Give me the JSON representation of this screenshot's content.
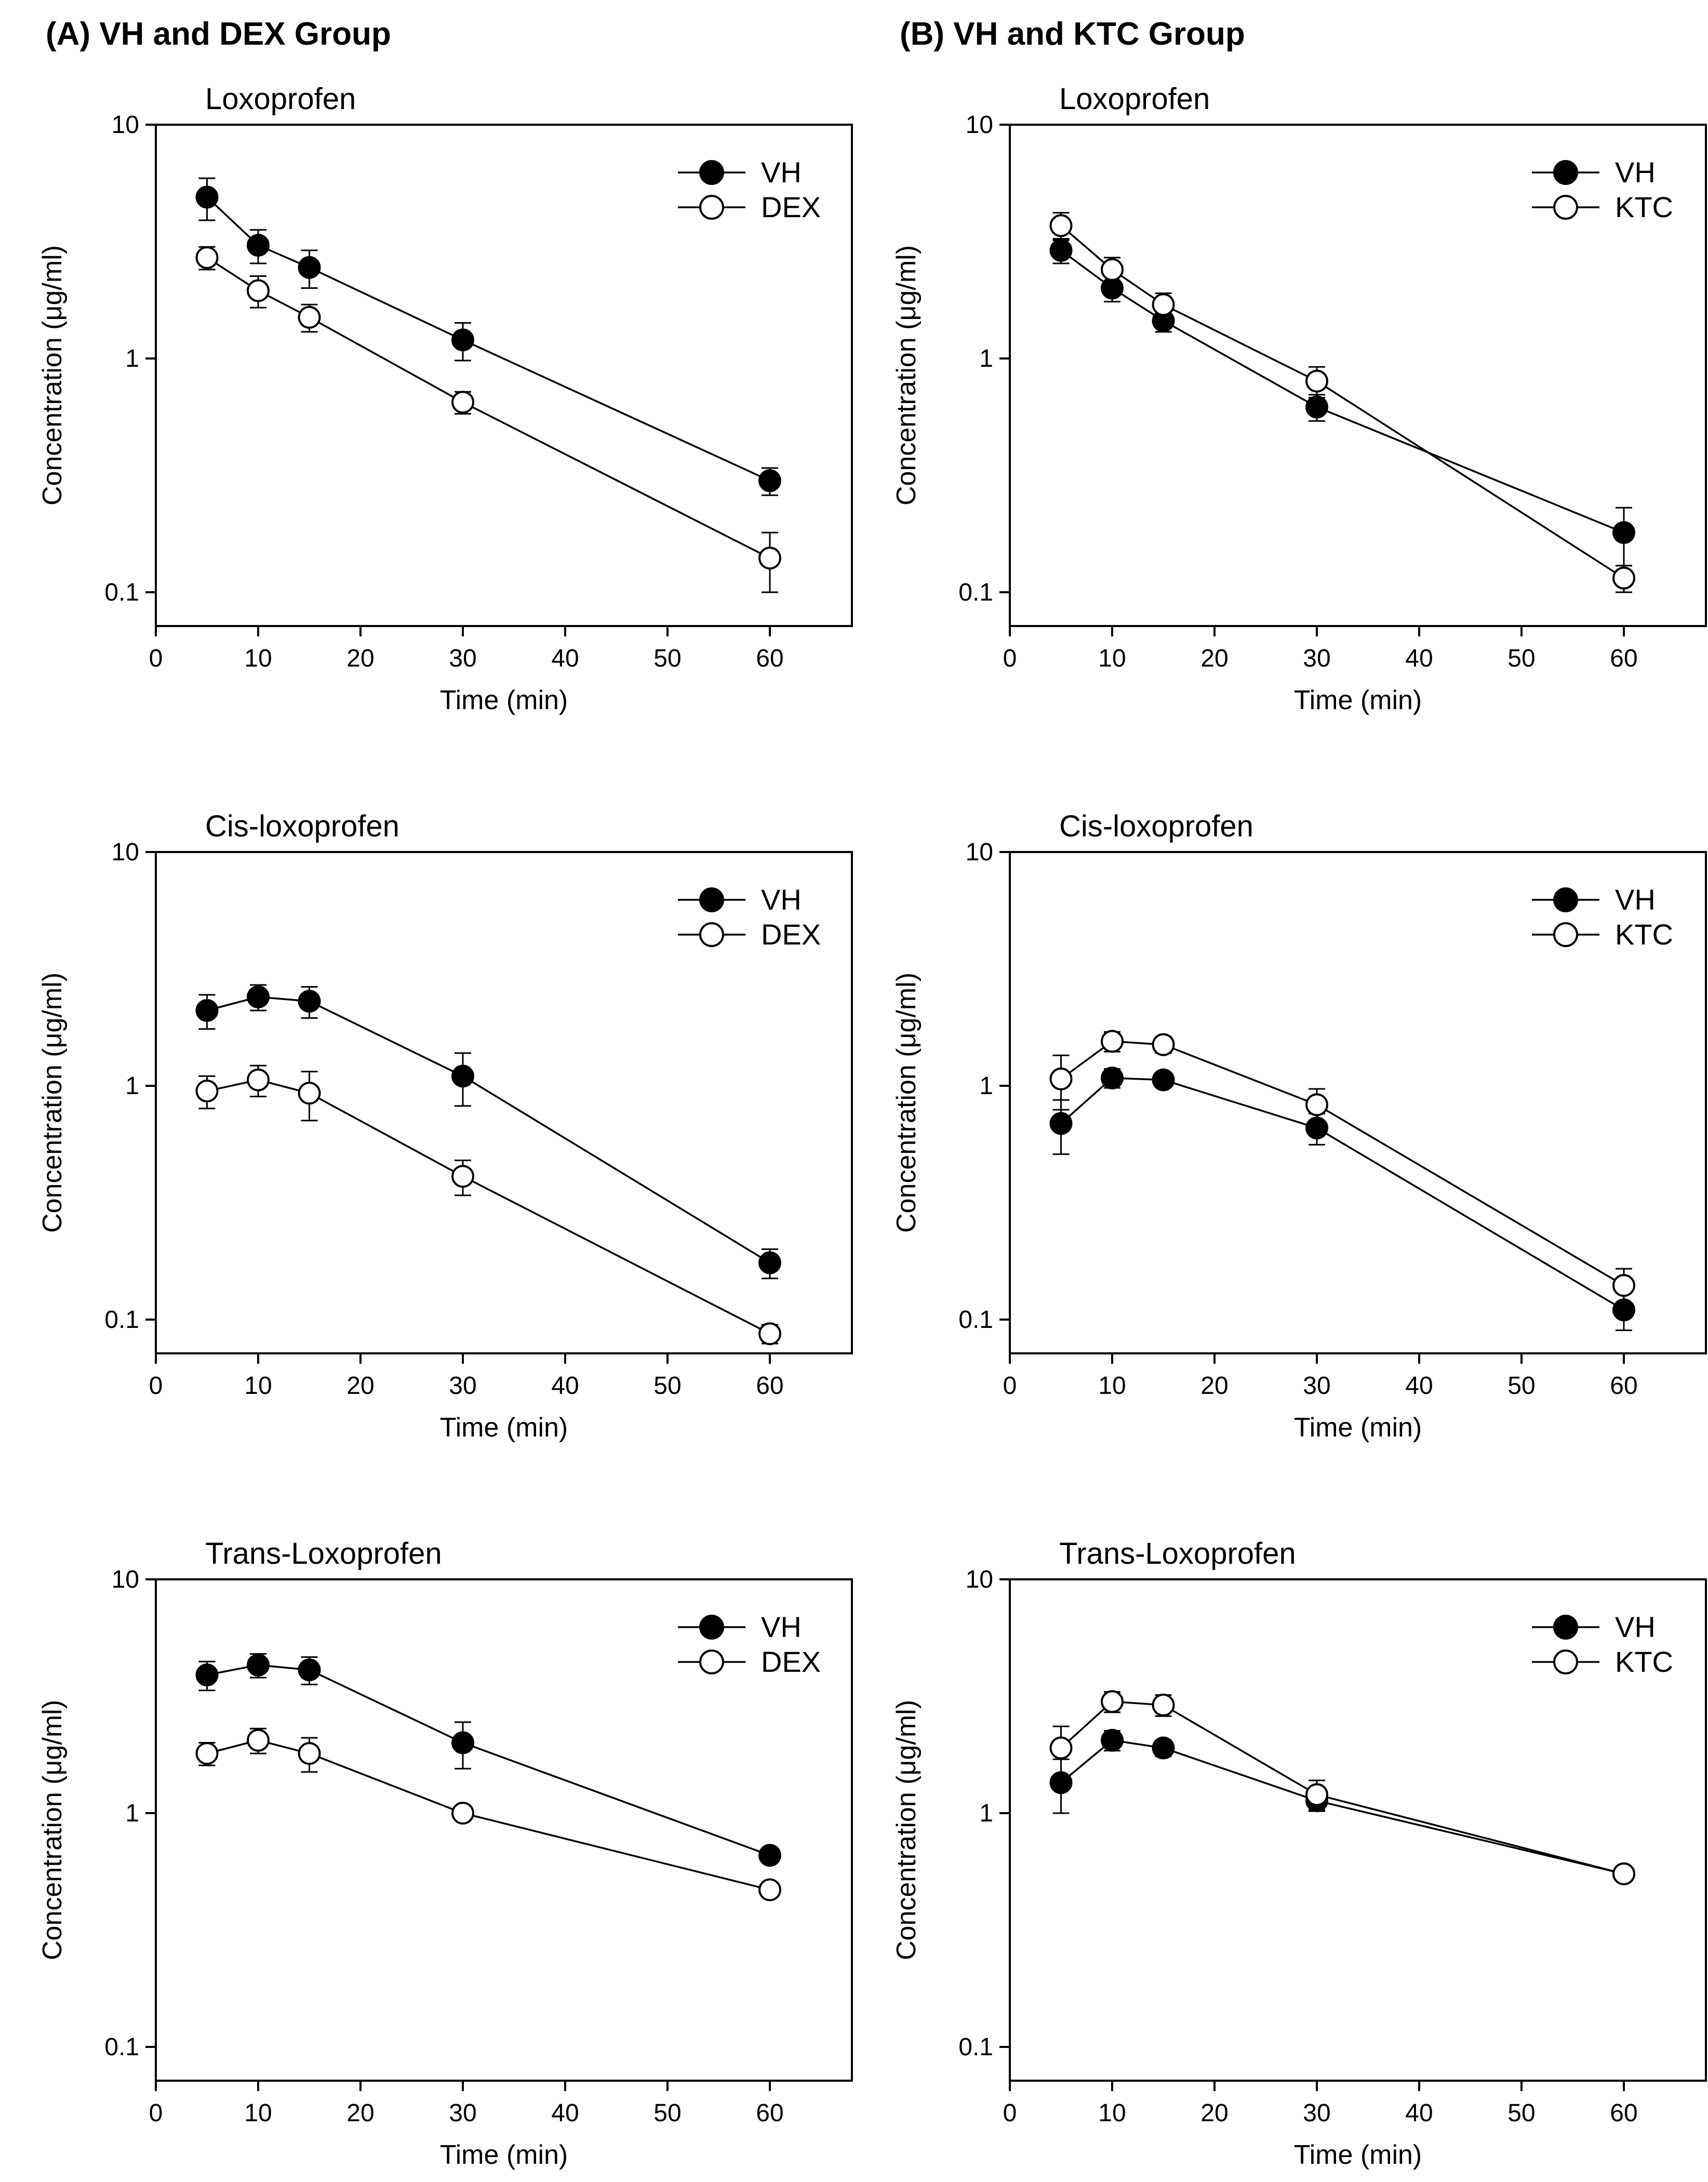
{
  "figure": {
    "background": "#ffffff",
    "foreground": "#000000",
    "panels": [
      {
        "id": "A",
        "label": "(A) VH and DEX Group"
      },
      {
        "id": "B",
        "label": "(B) VH and KTC Group"
      }
    ]
  },
  "chart_data": [
    {
      "type": "line",
      "id": "chart-a-loxoprofen",
      "panel": "A",
      "title": "Loxoprofen",
      "xlabel": "Time (min)",
      "ylabel": "Concentration (μg/ml)",
      "yscale": "log",
      "xlim": [
        0,
        68
      ],
      "ylim": [
        0.07,
        10
      ],
      "xticks": [
        0,
        10,
        20,
        30,
        40,
        50,
        60
      ],
      "yticks": [
        "10",
        "1",
        "0.1"
      ],
      "grid": false,
      "legend_position": "top-right",
      "x": [
        5,
        10,
        15,
        30,
        60
      ],
      "series": [
        {
          "name": "VH",
          "marker": "filled-circle",
          "values": [
            4.9,
            3.05,
            2.45,
            1.2,
            0.3
          ],
          "errors": [
            1.0,
            0.5,
            0.45,
            0.22,
            0.04
          ]
        },
        {
          "name": "DEX",
          "marker": "open-circle",
          "values": [
            2.7,
            1.95,
            1.5,
            0.65,
            0.14
          ],
          "errors": [
            0.3,
            0.3,
            0.2,
            0.07,
            0.04
          ]
        }
      ]
    },
    {
      "type": "line",
      "id": "chart-b-loxoprofen",
      "panel": "B",
      "title": "Loxoprofen",
      "xlabel": "Time (min)",
      "ylabel": "Concentration (μg/ml)",
      "yscale": "log",
      "xlim": [
        0,
        68
      ],
      "ylim": [
        0.07,
        10
      ],
      "xticks": [
        0,
        10,
        20,
        30,
        40,
        50,
        60
      ],
      "yticks": [
        "10",
        "1",
        "0.1"
      ],
      "grid": false,
      "legend_position": "top-right",
      "x": [
        5,
        10,
        15,
        30,
        60
      ],
      "series": [
        {
          "name": "VH",
          "marker": "filled-circle",
          "values": [
            2.9,
            2.0,
            1.45,
            0.62,
            0.18
          ],
          "errors": [
            0.35,
            0.25,
            0.15,
            0.08,
            0.05
          ]
        },
        {
          "name": "KTC",
          "marker": "open-circle",
          "values": [
            3.7,
            2.4,
            1.7,
            0.8,
            0.115
          ],
          "errors": [
            0.5,
            0.3,
            0.2,
            0.12,
            0.015
          ]
        }
      ]
    },
    {
      "type": "line",
      "id": "chart-a-cis-loxoprofen",
      "panel": "A",
      "title": "Cis-loxoprofen",
      "xlabel": "Time (min)",
      "ylabel": "Concentration (μg/ml)",
      "yscale": "log",
      "xlim": [
        0,
        68
      ],
      "ylim": [
        0.07,
        10
      ],
      "xticks": [
        0,
        10,
        20,
        30,
        40,
        50,
        60
      ],
      "yticks": [
        "10",
        "1",
        "0.1"
      ],
      "grid": false,
      "legend_position": "top-right",
      "x": [
        5,
        10,
        15,
        30,
        60
      ],
      "series": [
        {
          "name": "VH",
          "marker": "filled-circle",
          "values": [
            2.1,
            2.4,
            2.3,
            1.1,
            0.175
          ],
          "errors": [
            0.35,
            0.3,
            0.35,
            0.28,
            0.025
          ]
        },
        {
          "name": "DEX",
          "marker": "open-circle",
          "values": [
            0.95,
            1.06,
            0.93,
            0.41,
            0.087
          ],
          "errors": [
            0.15,
            0.16,
            0.22,
            0.07,
            0.008
          ]
        }
      ]
    },
    {
      "type": "line",
      "id": "chart-b-cis-loxoprofen",
      "panel": "B",
      "title": "Cis-loxoprofen",
      "xlabel": "Time (min)",
      "ylabel": "Concentration (μg/ml)",
      "yscale": "log",
      "xlim": [
        0,
        68
      ],
      "ylim": [
        0.07,
        10
      ],
      "xticks": [
        0,
        10,
        20,
        30,
        40,
        50,
        60
      ],
      "yticks": [
        "10",
        "1",
        "0.1"
      ],
      "grid": false,
      "legend_position": "top-right",
      "x": [
        5,
        10,
        15,
        30,
        60
      ],
      "series": [
        {
          "name": "VH",
          "marker": "filled-circle",
          "values": [
            0.69,
            1.08,
            1.06,
            0.66,
            0.11
          ],
          "errors": [
            0.18,
            0.1,
            0.07,
            0.1,
            0.02
          ]
        },
        {
          "name": "KTC",
          "marker": "open-circle",
          "values": [
            1.07,
            1.55,
            1.5,
            0.83,
            0.14
          ],
          "errors": [
            0.28,
            0.15,
            0.12,
            0.14,
            0.025
          ]
        }
      ]
    },
    {
      "type": "line",
      "id": "chart-a-trans-loxoprofen",
      "panel": "A",
      "title": "Trans-Loxoprofen",
      "xlabel": "Time (min)",
      "ylabel": "Concentration (μg/ml)",
      "yscale": "log",
      "xlim": [
        0,
        68
      ],
      "ylim": [
        0.07,
        10
      ],
      "xticks": [
        0,
        10,
        20,
        30,
        40,
        50,
        60
      ],
      "yticks": [
        "10",
        "1",
        "0.1"
      ],
      "grid": false,
      "legend_position": "top-right",
      "x": [
        5,
        10,
        15,
        30,
        60
      ],
      "series": [
        {
          "name": "VH",
          "marker": "filled-circle",
          "values": [
            3.9,
            4.3,
            4.1,
            2.0,
            0.66
          ],
          "errors": [
            0.55,
            0.5,
            0.55,
            0.45,
            0.04
          ]
        },
        {
          "name": "DEX",
          "marker": "open-circle",
          "values": [
            1.8,
            2.05,
            1.8,
            1.0,
            0.47
          ],
          "errors": [
            0.2,
            0.25,
            0.3,
            0.04,
            0.03
          ]
        }
      ]
    },
    {
      "type": "line",
      "id": "chart-b-trans-loxoprofen",
      "panel": "B",
      "title": "Trans-Loxoprofen",
      "xlabel": "Time (min)",
      "ylabel": "Concentration (μg/ml)",
      "yscale": "log",
      "xlim": [
        0,
        68
      ],
      "ylim": [
        0.07,
        10
      ],
      "xticks": [
        0,
        10,
        20,
        30,
        40,
        50,
        60
      ],
      "yticks": [
        "10",
        "1",
        "0.1"
      ],
      "grid": false,
      "legend_position": "top-right",
      "x": [
        5,
        10,
        15,
        30,
        60
      ],
      "series": [
        {
          "name": "VH",
          "marker": "filled-circle",
          "values": [
            1.35,
            2.05,
            1.9,
            1.13,
            0.55
          ],
          "errors": [
            0.35,
            0.2,
            0.15,
            0.1,
            0.02
          ]
        },
        {
          "name": "KTC",
          "marker": "open-circle",
          "values": [
            1.9,
            3.0,
            2.9,
            1.2,
            0.55
          ],
          "errors": [
            0.45,
            0.3,
            0.3,
            0.18,
            0.02
          ]
        }
      ]
    }
  ]
}
